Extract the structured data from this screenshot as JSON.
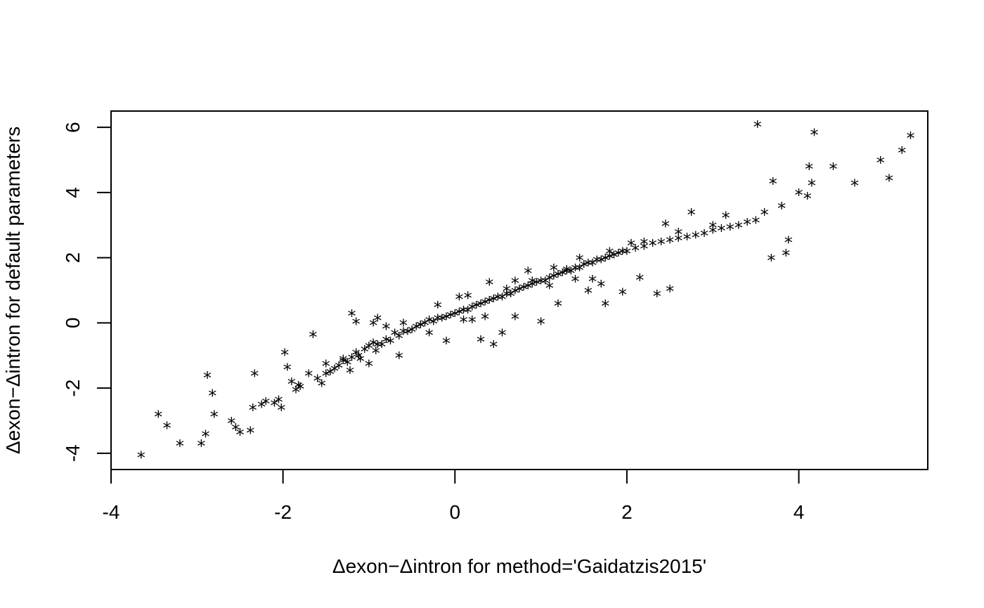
{
  "chart_data": {
    "type": "scatter",
    "title": "",
    "xlabel": "Δexon−Δintron for method='Gaidatzis2015'",
    "ylabel": "Δexon−Δintron for default parameters",
    "xlim": [
      -4,
      5.5
    ],
    "ylim": [
      -4.5,
      6.5
    ],
    "xticks": [
      -4,
      -2,
      0,
      2,
      4
    ],
    "yticks": [
      -4,
      -2,
      0,
      2,
      4,
      6
    ],
    "xtick_labels": [
      "-4",
      "-2",
      "0",
      "2",
      "4"
    ],
    "ytick_labels": [
      "-4",
      "-2",
      "0",
      "2",
      "4",
      "6"
    ],
    "marker": "*",
    "point_color": "#000000",
    "grid": false,
    "legend": "none",
    "x": [
      -3.65,
      -3.45,
      -3.35,
      -3.2,
      -2.95,
      -2.9,
      -2.88,
      -2.82,
      -2.8,
      -2.6,
      -2.55,
      -2.5,
      -2.38,
      -2.35,
      -2.33,
      -2.25,
      -2.2,
      -2.1,
      -2.05,
      -2.02,
      -1.98,
      -1.95,
      -1.9,
      -1.85,
      -1.82,
      -1.7,
      -1.6,
      -1.55,
      -1.5,
      -1.45,
      -1.4,
      -1.35,
      -1.3,
      -1.25,
      -1.22,
      -1.2,
      -1.15,
      -1.12,
      -1.1,
      -1.05,
      -1.0,
      -0.95,
      -0.92,
      -0.9,
      -0.85,
      -0.8,
      -0.75,
      -0.7,
      -0.65,
      -0.6,
      -0.55,
      -0.5,
      -0.45,
      -0.4,
      -0.35,
      -0.3,
      -0.25,
      -0.2,
      -0.15,
      -0.1,
      -0.05,
      0.0,
      0.05,
      0.1,
      0.15,
      0.2,
      0.25,
      0.3,
      0.35,
      0.4,
      0.45,
      0.5,
      0.55,
      0.6,
      0.65,
      0.7,
      0.75,
      0.8,
      0.85,
      0.9,
      0.95,
      1.0,
      1.05,
      1.1,
      1.15,
      1.2,
      1.25,
      1.3,
      1.35,
      1.4,
      1.45,
      1.5,
      1.55,
      1.6,
      1.65,
      1.7,
      1.75,
      1.8,
      1.85,
      1.9,
      1.95,
      2.0,
      2.1,
      2.2,
      2.3,
      2.4,
      2.5,
      2.6,
      2.7,
      2.8,
      2.9,
      3.0,
      3.1,
      3.2,
      3.3,
      3.4,
      3.5,
      3.52,
      3.6,
      3.68,
      3.7,
      3.8,
      3.85,
      3.88,
      4.0,
      4.1,
      4.12,
      4.15,
      4.18,
      4.4,
      4.65,
      4.95,
      5.05,
      5.2,
      5.3,
      -1.65,
      -1.2,
      -0.95,
      -0.9,
      -1.15,
      -0.3,
      -0.1,
      0.1,
      0.2,
      0.3,
      0.45,
      0.55,
      0.7,
      1.0,
      1.2,
      1.4,
      1.55,
      1.7,
      1.75,
      1.95,
      2.35,
      2.5,
      1.1,
      0.7,
      0.4,
      0.15,
      -0.4,
      -0.6,
      -0.8,
      -1.3,
      -1.5,
      -1.8,
      0.9,
      1.3,
      1.8,
      2.2,
      2.6,
      3.0,
      0.6,
      -0.2,
      0.05,
      0.85,
      1.15,
      1.45,
      2.05,
      2.45,
      2.75,
      3.15,
      -0.65,
      -1.0,
      0.35,
      1.6,
      2.15
    ],
    "y": [
      -4.1,
      -2.85,
      -3.2,
      -3.75,
      -3.75,
      -3.45,
      -1.65,
      -2.2,
      -2.85,
      -3.05,
      -3.25,
      -3.4,
      -3.35,
      -2.65,
      -1.6,
      -2.55,
      -2.45,
      -2.5,
      -2.4,
      -2.65,
      -0.95,
      -1.4,
      -1.85,
      -2.1,
      -1.95,
      -1.6,
      -1.75,
      -1.9,
      -1.3,
      -1.55,
      -1.45,
      -1.35,
      -1.15,
      -1.25,
      -1.5,
      -1.1,
      -0.95,
      -1.05,
      -1.15,
      -0.85,
      -0.75,
      -0.65,
      -0.9,
      -0.7,
      -0.7,
      -0.55,
      -0.6,
      -0.35,
      -0.45,
      -0.3,
      -0.3,
      -0.25,
      -0.15,
      -0.1,
      -0.05,
      0.05,
      0.0,
      0.1,
      0.1,
      0.15,
      0.2,
      0.25,
      0.3,
      0.35,
      0.35,
      0.45,
      0.5,
      0.55,
      0.6,
      0.65,
      0.7,
      0.75,
      0.75,
      0.85,
      0.85,
      0.95,
      1.0,
      1.05,
      1.1,
      1.15,
      1.2,
      1.25,
      1.25,
      1.35,
      1.4,
      1.45,
      1.5,
      1.55,
      1.55,
      1.65,
      1.65,
      1.75,
      1.8,
      1.8,
      1.9,
      1.9,
      1.95,
      2.0,
      2.05,
      2.1,
      2.15,
      2.15,
      2.25,
      2.3,
      2.4,
      2.45,
      2.5,
      2.55,
      2.6,
      2.65,
      2.7,
      2.8,
      2.85,
      2.9,
      2.95,
      3.05,
      3.1,
      6.05,
      3.35,
      1.95,
      4.3,
      3.55,
      2.1,
      2.5,
      3.95,
      3.85,
      4.75,
      4.25,
      5.8,
      4.75,
      4.25,
      4.95,
      4.4,
      5.25,
      5.7,
      -0.4,
      0.25,
      -0.05,
      0.1,
      0.0,
      -0.35,
      -0.6,
      0.05,
      0.05,
      -0.55,
      -0.7,
      -0.35,
      0.15,
      0.0,
      0.55,
      1.3,
      0.95,
      1.15,
      0.55,
      0.9,
      0.85,
      1.0,
      1.1,
      1.25,
      1.2,
      0.8,
      -0.1,
      -0.05,
      -0.15,
      -1.2,
      -1.6,
      -2.0,
      1.25,
      1.6,
      2.15,
      2.45,
      2.75,
      2.95,
      1.0,
      0.5,
      0.75,
      1.55,
      1.65,
      1.95,
      2.4,
      3.0,
      3.35,
      3.25,
      -1.05,
      -1.3,
      0.15,
      1.3,
      1.35
    ]
  }
}
